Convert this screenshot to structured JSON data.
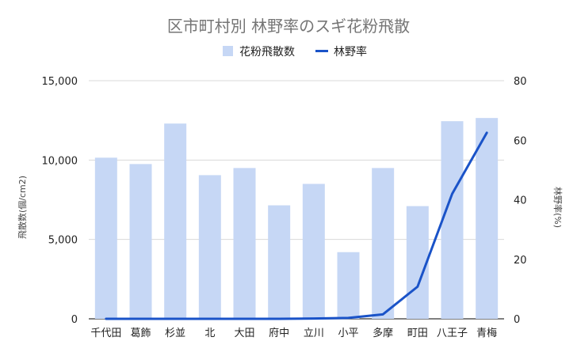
{
  "chart_data": {
    "type": "bar",
    "title": "区市町村別 林野率のスギ花粉飛散",
    "categories": [
      "千代田",
      "葛飾",
      "杉並",
      "北",
      "大田",
      "府中",
      "立川",
      "小平",
      "多摩",
      "町田",
      "八王子",
      "青梅"
    ],
    "series": [
      {
        "name": "花粉飛散数",
        "type": "bar",
        "axis": "left",
        "color": "#c6d7f5",
        "values": [
          10150,
          9750,
          12300,
          9050,
          9500,
          7150,
          8500,
          4200,
          9500,
          7100,
          12450,
          12650
        ]
      },
      {
        "name": "林野率",
        "type": "line",
        "axis": "right",
        "color": "#1a53c8",
        "values": [
          0,
          0,
          0,
          0,
          0,
          0,
          0.1,
          0.3,
          1.5,
          10.8,
          42,
          62.5
        ]
      }
    ],
    "y_left": {
      "label": "飛散数(個/cm2)",
      "ylim": [
        0,
        15000
      ],
      "ticks": [
        0,
        5000,
        10000,
        15000
      ],
      "tick_labels": [
        "0",
        "5,000",
        "10,000",
        "15,000"
      ]
    },
    "y_right": {
      "label": "林野率(%)",
      "ylim": [
        0,
        80
      ],
      "ticks": [
        0,
        20,
        40,
        60,
        80
      ],
      "tick_labels": [
        "0",
        "20",
        "40",
        "60",
        "80"
      ]
    },
    "legend_position": "top-center",
    "grid": true
  }
}
